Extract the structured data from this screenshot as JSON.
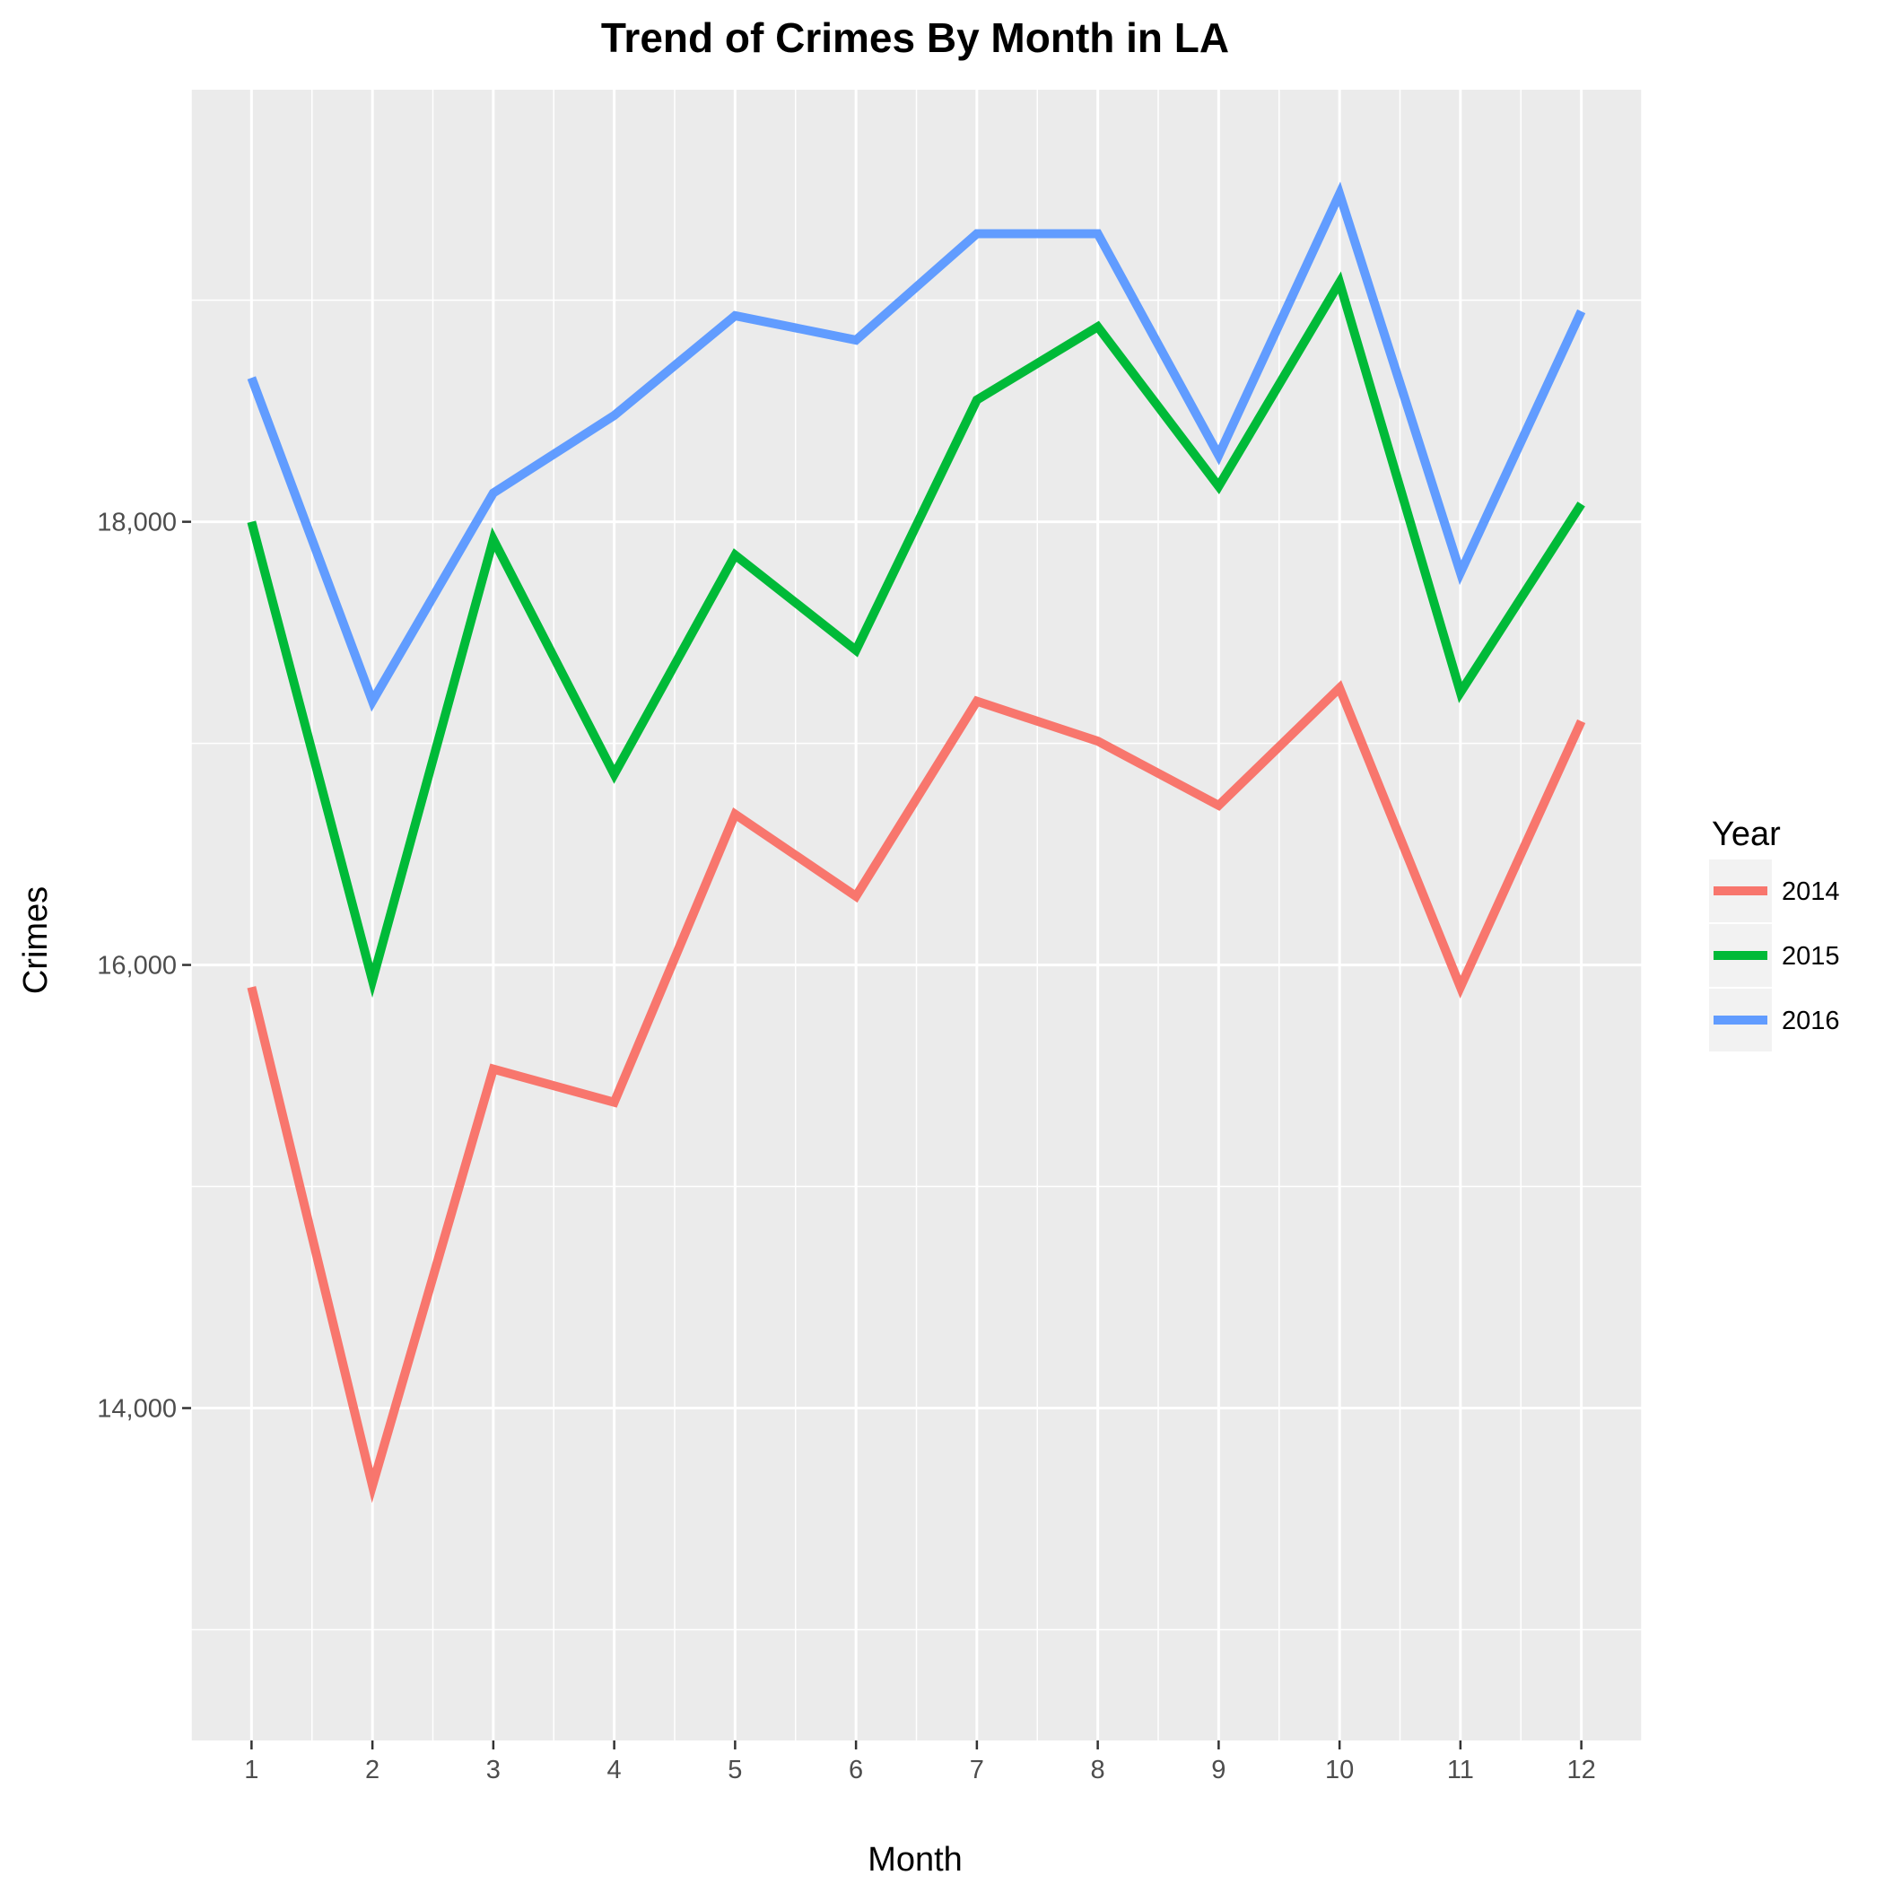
{
  "chart_data": {
    "type": "line",
    "title": "Trend of Crimes By Month in LA",
    "xlabel": "Month",
    "ylabel": "Crimes",
    "x": [
      1,
      2,
      3,
      4,
      5,
      6,
      7,
      8,
      9,
      10,
      11,
      12
    ],
    "x_tick_labels": [
      "1",
      "2",
      "3",
      "4",
      "5",
      "6",
      "7",
      "8",
      "9",
      "10",
      "11",
      "12"
    ],
    "y_ticks": [
      14000,
      16000,
      18000
    ],
    "y_tick_labels": [
      "14,000",
      "16,000",
      "18,000"
    ],
    "xlim": [
      0.5,
      12.5
    ],
    "ylim": [
      12500,
      19950
    ],
    "grid": true,
    "legend": {
      "title": "Year",
      "placement": "right"
    },
    "series": [
      {
        "name": "2014",
        "color": "#F8766D",
        "values": [
          15900,
          13650,
          15530,
          15380,
          16680,
          16310,
          17190,
          17010,
          16720,
          17250,
          15900,
          17100
        ]
      },
      {
        "name": "2015",
        "color": "#00BA38",
        "values": [
          18000,
          15930,
          17920,
          16860,
          17850,
          17420,
          18550,
          18880,
          18160,
          19080,
          17230,
          18080
        ]
      },
      {
        "name": "2016",
        "color": "#619CFF",
        "values": [
          18650,
          17190,
          18130,
          18480,
          18930,
          18820,
          19300,
          19300,
          18300,
          19480,
          17770,
          18950
        ]
      }
    ]
  }
}
